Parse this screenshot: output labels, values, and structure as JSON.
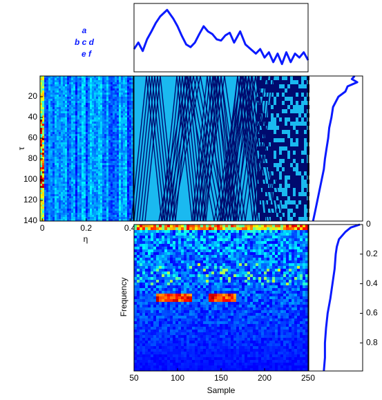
{
  "chart_data": [
    {
      "type": "line",
      "color": "#0a1aff",
      "annotations": [
        "a",
        "b c d",
        "e f"
      ],
      "x": [
        50,
        55,
        60,
        65,
        70,
        75,
        80,
        88,
        95,
        100,
        105,
        110,
        115,
        120,
        125,
        130,
        135,
        140,
        145,
        150,
        155,
        160,
        165,
        172,
        178,
        184,
        190,
        195,
        200,
        205,
        210,
        215,
        220,
        225,
        230,
        235,
        240,
        245,
        250
      ],
      "values": [
        0.35,
        0.45,
        0.32,
        0.5,
        0.62,
        0.75,
        0.85,
        0.95,
        0.82,
        0.7,
        0.55,
        0.42,
        0.38,
        0.45,
        0.58,
        0.7,
        0.62,
        0.58,
        0.5,
        0.48,
        0.56,
        0.6,
        0.45,
        0.62,
        0.42,
        0.35,
        0.28,
        0.35,
        0.22,
        0.3,
        0.15,
        0.28,
        0.12,
        0.3,
        0.15,
        0.28,
        0.22,
        0.3,
        0.18
      ],
      "xlim": [
        50,
        250
      ],
      "ylim": [
        0,
        1.05
      ]
    },
    {
      "type": "heatmap",
      "xlabel": "η",
      "ylabel": "τ",
      "xlim": [
        -0.01,
        0.415
      ],
      "ylim": [
        0,
        140
      ],
      "xticks": [
        0,
        0.2,
        0.4
      ],
      "yticks": [
        20,
        40,
        60,
        80,
        100,
        120,
        140
      ]
    },
    {
      "type": "heatmap",
      "xlim": [
        50,
        250
      ],
      "ylim": [
        0,
        140
      ]
    },
    {
      "type": "line",
      "orientation": "horizontal",
      "color": "#0a1aff",
      "x": [
        0,
        3,
        6,
        10,
        15,
        20,
        30,
        40,
        50,
        60,
        70,
        80,
        90,
        100,
        110,
        120,
        130,
        140
      ],
      "values": [
        0.85,
        0.8,
        0.9,
        0.72,
        0.68,
        0.55,
        0.45,
        0.42,
        0.38,
        0.36,
        0.33,
        0.3,
        0.28,
        0.24,
        0.2,
        0.16,
        0.12,
        0.08
      ],
      "xlim": [
        0,
        1
      ],
      "ylim": [
        0,
        140
      ]
    },
    {
      "type": "heatmap",
      "xlabel": "Sample",
      "ylabel": "Frequency",
      "xlim": [
        50,
        250
      ],
      "ylim": [
        0,
        0.99
      ],
      "xticks": [
        50,
        100,
        150,
        200,
        250
      ]
    },
    {
      "type": "line",
      "orientation": "horizontal",
      "color": "#0a1aff",
      "x": [
        0,
        0.02,
        0.05,
        0.1,
        0.15,
        0.2,
        0.3,
        0.4,
        0.5,
        0.6,
        0.7,
        0.8,
        0.9,
        0.99
      ],
      "values": [
        0.95,
        0.78,
        0.68,
        0.56,
        0.52,
        0.5,
        0.48,
        0.44,
        0.4,
        0.35,
        0.32,
        0.3,
        0.3,
        0.28
      ],
      "xlim": [
        0,
        1
      ],
      "ylim": [
        0,
        0.99
      ],
      "yticks": [
        0,
        0.2,
        0.4,
        0.6,
        0.8
      ]
    }
  ]
}
